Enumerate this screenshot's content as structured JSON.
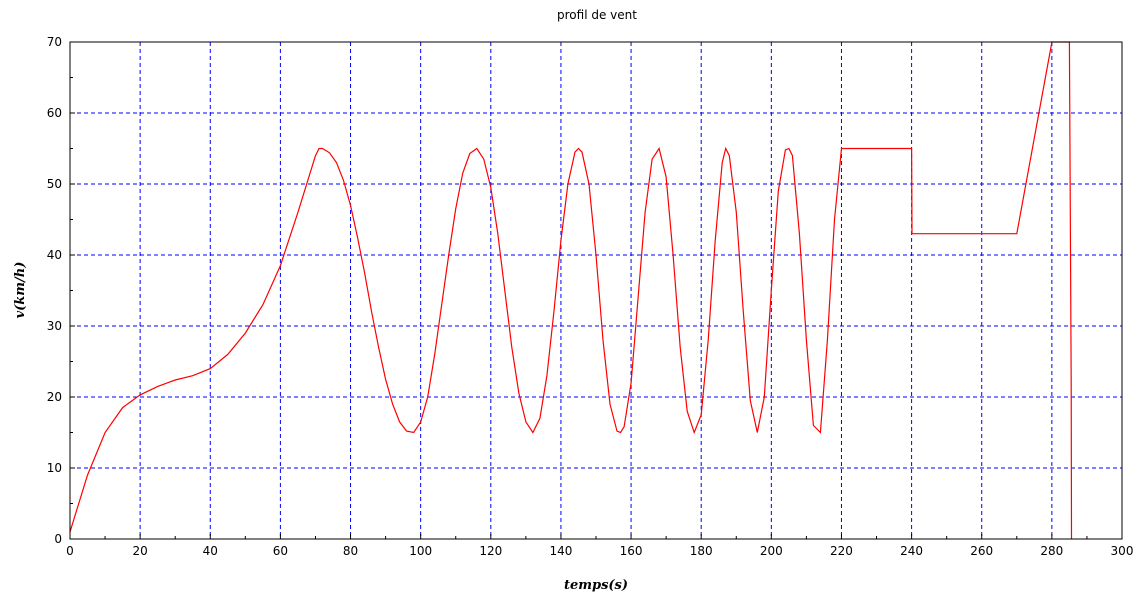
{
  "chart_data": {
    "type": "line",
    "title": "profil de vent",
    "xlabel": "temps(s)",
    "ylabel": "v(km/h)",
    "xlim": [
      0,
      300
    ],
    "ylim": [
      0,
      70
    ],
    "x_ticks": [
      "0",
      "20",
      "40",
      "60",
      "80",
      "100",
      "120",
      "140",
      "160",
      "180",
      "200",
      "220",
      "240",
      "260",
      "280",
      "300"
    ],
    "y_ticks": [
      "0",
      "10",
      "20",
      "30",
      "40",
      "50",
      "60",
      "70"
    ],
    "grid": true,
    "grid_color": "#0000ff",
    "series": [
      {
        "color": "#ff0000",
        "x": [
          0,
          5,
          10,
          15,
          20,
          25,
          30,
          35,
          40,
          45,
          50,
          55,
          60,
          65,
          70,
          71,
          72,
          74,
          76,
          78,
          80,
          82,
          84,
          86,
          88,
          90,
          92,
          94,
          96,
          98,
          100,
          102,
          104,
          106,
          108,
          110,
          112,
          114,
          116,
          118,
          120,
          122,
          124,
          126,
          128,
          130,
          132,
          134,
          136,
          138,
          140,
          142,
          144,
          145,
          146,
          148,
          150,
          152,
          154,
          156,
          157,
          158,
          160,
          162,
          164,
          166,
          168,
          170,
          172,
          174,
          176,
          178,
          180,
          182,
          184,
          186,
          187,
          188,
          190,
          192,
          194,
          196,
          198,
          200,
          202,
          204,
          205,
          206,
          208,
          210,
          212,
          214,
          216,
          218,
          220,
          230,
          240,
          240.1,
          245,
          250,
          260,
          270,
          280,
          285,
          285.5,
          285.6
        ],
        "y": [
          1,
          9,
          15,
          18.5,
          20.3,
          21.5,
          22.4,
          23,
          24,
          26,
          29,
          33,
          38.5,
          46,
          54,
          55,
          55,
          54.4,
          53,
          50.5,
          47,
          42.5,
          37.5,
          32,
          27,
          22.5,
          19,
          16.5,
          15.2,
          15,
          16.5,
          20,
          26,
          33,
          40,
          46.5,
          51.5,
          54.3,
          55,
          53.5,
          49.5,
          43,
          35,
          27,
          20.5,
          16.5,
          15,
          17,
          23,
          32,
          42,
          50,
          54.5,
          55,
          54.5,
          50,
          40,
          28,
          19,
          15.2,
          15,
          15.8,
          22,
          34,
          46,
          53.5,
          55,
          51,
          40,
          27,
          18,
          15,
          17.5,
          28,
          42,
          53,
          55,
          54,
          46,
          32,
          19.5,
          15,
          20,
          35,
          49,
          54.8,
          55,
          54,
          43,
          28,
          16,
          15,
          28,
          45,
          55,
          55,
          55,
          43,
          43,
          43,
          43,
          43,
          70,
          70,
          22,
          0
        ]
      }
    ]
  }
}
